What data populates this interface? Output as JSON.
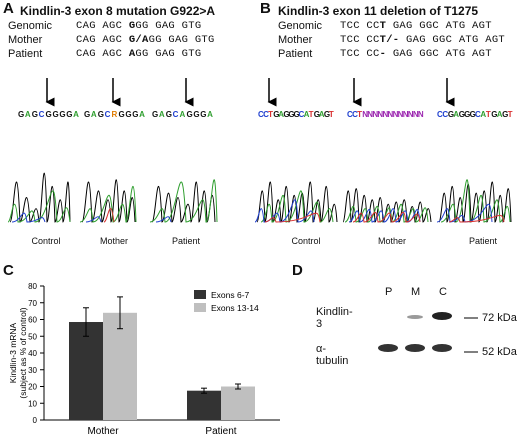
{
  "panelA": {
    "label": "A",
    "title": "Kindlin-3 exon 8 mutation G922>A",
    "rows": [
      {
        "name": "Genomic",
        "seq_pre": "CAG AGC ",
        "seq_bold": "G",
        "seq_post": "GG  GAG GTG"
      },
      {
        "name": "Mother",
        "seq_pre": "CAG AGC ",
        "seq_bold": "G/A",
        "seq_post": "GG GAG GTG"
      },
      {
        "name": "Patient",
        "seq_pre": "CAG AGC ",
        "seq_bold": "A",
        "seq_post": "GG  GAG GTG"
      }
    ],
    "traces": [
      {
        "caption": "Control",
        "calls": "GAGCGGGGA"
      },
      {
        "caption": "Mother",
        "calls": "GAGCRGGGA"
      },
      {
        "caption": "Patient",
        "calls": "GAGCAGGGA"
      }
    ]
  },
  "panelB": {
    "label": "B",
    "title": "Kindlin-3 exon 11 deletion of T1275",
    "rows": [
      {
        "name": "Genomic",
        "seq_pre": "TCC CC",
        "seq_bold": "T",
        "seq_post": "  GAG GGC ATG AGT"
      },
      {
        "name": "Mother",
        "seq_pre": "TCC CC",
        "seq_bold": "T/-",
        "seq_post": " GAG GGC ATG AGT"
      },
      {
        "name": "Patient",
        "seq_pre": "TCC CC",
        "seq_bold": "-",
        "seq_post": "  GAG GGC ATG AGT"
      }
    ],
    "traces": [
      {
        "caption": "Control",
        "calls": "CCTGAGGGCATGAGT"
      },
      {
        "caption": "Mother",
        "calls": "CCTNNNNNNNNNNNN"
      },
      {
        "caption": "Patient",
        "calls": "CCGAGGGCATGAGT"
      }
    ]
  },
  "panelC": {
    "label": "C",
    "chart_data": {
      "type": "bar",
      "categories": [
        "Mother",
        "Patient"
      ],
      "series": [
        {
          "name": "Exons 6-7",
          "values": [
            58.5,
            17.5
          ],
          "errors": [
            8.5,
            1.5
          ],
          "color": "#333333"
        },
        {
          "name": "Exons 13-14",
          "values": [
            64,
            20
          ],
          "errors": [
            9.5,
            1.5
          ],
          "color": "#bfbfbf"
        }
      ],
      "ylabel_line1": "Kindlin-3 mRNA",
      "ylabel_line2": "(subject as % of control)",
      "xlabel": "",
      "ylim": [
        0,
        80
      ],
      "yticks": [
        "0",
        "10",
        "20",
        "30",
        "40",
        "50",
        "60",
        "70",
        "80"
      ],
      "legend_position": "top-right"
    }
  },
  "panelD": {
    "label": "D",
    "lanes": [
      "P",
      "M",
      "C"
    ],
    "rows": [
      {
        "name": "Kindlin-3",
        "marker": "72 kDa"
      },
      {
        "name": "α-tubulin",
        "marker": "52 kDa"
      }
    ]
  }
}
